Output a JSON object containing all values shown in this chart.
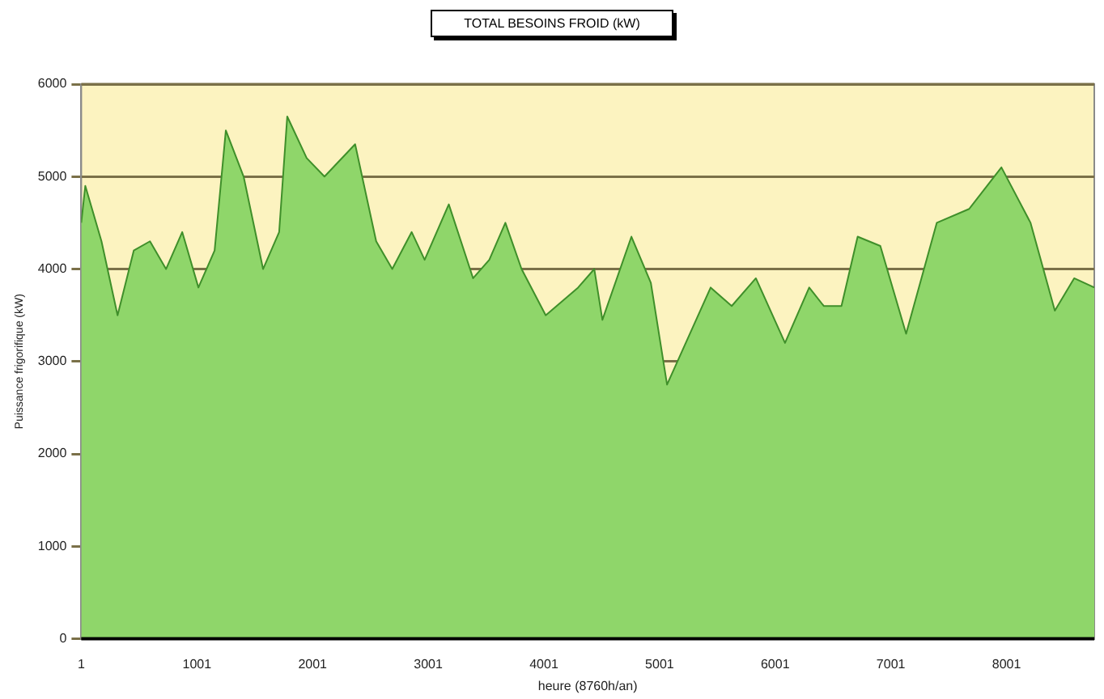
{
  "chart_data": {
    "type": "area",
    "title": "TOTAL BESOINS FROID (kW)",
    "xlabel": "heure (8760h/an)",
    "ylabel": "Puissance frigorifique (kW)",
    "x": [
      1,
      36,
      176,
      315,
      455,
      595,
      734,
      874,
      1014,
      1154,
      1251,
      1405,
      1573,
      1712,
      1782,
      1950,
      2104,
      2369,
      2551,
      2690,
      2858,
      2970,
      3179,
      3389,
      3529,
      3668,
      3808,
      4017,
      4297,
      4437,
      4507,
      4758,
      4926,
      5066,
      5443,
      5625,
      5834,
      6086,
      6295,
      6421,
      6574,
      6714,
      6910,
      7133,
      7398,
      7678,
      7957,
      8209,
      8419,
      8586,
      8760
    ],
    "series": [
      {
        "color": "#8fd66a",
        "values": [
          4500,
          4900,
          4300,
          3500,
          4200,
          4300,
          4000,
          4400,
          3800,
          4200,
          5500,
          5000,
          4000,
          4400,
          5650,
          5200,
          5000,
          5350,
          4300,
          4000,
          4400,
          4100,
          4700,
          3900,
          4100,
          4500,
          4000,
          3500,
          3800,
          4000,
          3450,
          4350,
          3850,
          2750,
          3800,
          3600,
          3900,
          3200,
          3800,
          3600,
          3600,
          4350,
          4250,
          3300,
          4500,
          4650,
          5100,
          4500,
          3550,
          3900,
          3800
        ]
      }
    ],
    "xlim": [
      1,
      8760
    ],
    "xticks": [
      1,
      1001,
      2001,
      3001,
      4001,
      5001,
      6001,
      7001,
      8001
    ],
    "ylim": [
      0,
      6000
    ],
    "yticks": [
      0,
      1000,
      2000,
      3000,
      4000,
      5000,
      6000
    ],
    "grid": "y",
    "legend": false,
    "bands": [
      {
        "axis": "y",
        "from": 0,
        "to": 6000,
        "color": "#fcf3c0"
      }
    ]
  }
}
